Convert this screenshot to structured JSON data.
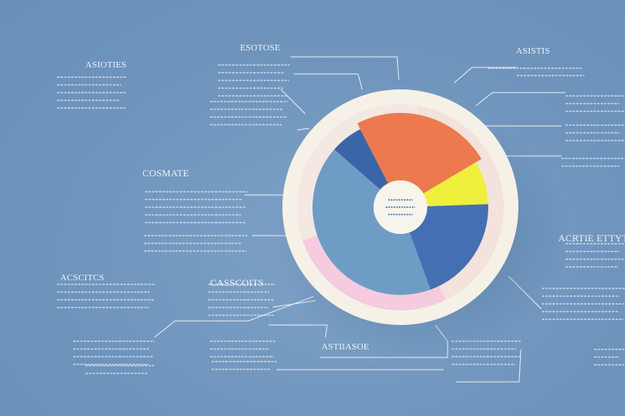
{
  "chart_data": {
    "type": "pie",
    "slices": [
      {
        "value": 42,
        "color": "#6f9cc5"
      },
      {
        "value": 6,
        "color": "#3a65a8"
      },
      {
        "value": 24,
        "color": "#ed7a4e"
      },
      {
        "value": 8,
        "color": "#eef03b"
      },
      {
        "value": 20,
        "color": "#4470b3"
      }
    ],
    "outer_ring_segments": [
      {
        "value": 40,
        "color": "#f3e3dc"
      },
      {
        "value": 27,
        "color": "#f5cbe0"
      },
      {
        "value": 33,
        "color": "#f3e8e2"
      }
    ],
    "center_label_lines": 3
  },
  "labels": {
    "top_center": "ESOTOSE",
    "top_right": "ASISTIS",
    "top_left": "ASIOTIES",
    "mid_left": "COSMATE",
    "mid_right": "ACRTIE ETTYTS",
    "lower_left": "ACSCITCS",
    "lower_center": "CASSCOITS",
    "bottom_center": "ASTIIASOE"
  },
  "colors": {
    "background": "#6f95bd",
    "ring": "#f6f1e6",
    "leader_line": "#e8eef5",
    "text": "#eef3f9"
  }
}
